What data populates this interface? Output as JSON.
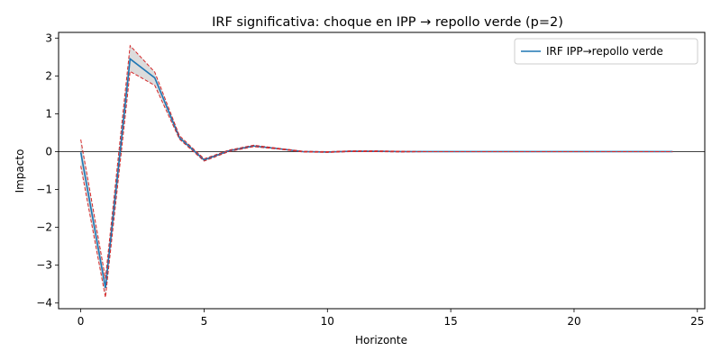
{
  "chart_data": {
    "type": "line",
    "title": "IRF significativa: choque en IPP → repollo verde (p=2)",
    "xlabel": "Horizonte",
    "ylabel": "Impacto",
    "xlim": [
      -0.9,
      25.3
    ],
    "ylim": [
      -4.15,
      3.15
    ],
    "xticks": [
      0,
      5,
      10,
      15,
      20,
      25
    ],
    "yticks": [
      -4,
      -3,
      -2,
      -1,
      0,
      1,
      2,
      3
    ],
    "grid": false,
    "legend_position": "upper-right",
    "zero_line": true,
    "x": [
      0,
      1,
      2,
      3,
      4,
      5,
      6,
      7,
      8,
      9,
      10,
      11,
      12,
      13,
      14,
      15,
      16,
      17,
      18,
      19,
      20,
      21,
      22,
      23,
      24
    ],
    "series": [
      {
        "name": "IRF IPP→repollo verde",
        "color": "#1f77b4",
        "values": [
          -0.02,
          -3.6,
          2.45,
          1.95,
          0.37,
          -0.22,
          0.02,
          0.15,
          0.08,
          0.0,
          -0.01,
          0.01,
          0.01,
          0.0,
          0.0,
          0.0,
          0.0,
          0.0,
          0.0,
          0.0,
          0.0,
          0.0,
          0.0,
          0.0,
          0.0
        ]
      }
    ],
    "band": {
      "color": "#d62728",
      "fill": "#c0c0c0",
      "upper": [
        0.32,
        -3.35,
        2.8,
        2.1,
        0.42,
        -0.19,
        0.04,
        0.17,
        0.09,
        0.01,
        0.0,
        0.02,
        0.02,
        0.01,
        0.0,
        0.0,
        0.0,
        0.0,
        0.0,
        0.0,
        0.0,
        0.0,
        0.0,
        0.0,
        0.0
      ],
      "lower": [
        -0.38,
        -3.85,
        2.12,
        1.75,
        0.33,
        -0.25,
        0.0,
        0.13,
        0.07,
        -0.01,
        -0.02,
        0.0,
        0.0,
        -0.01,
        0.0,
        0.0,
        0.0,
        0.0,
        0.0,
        0.0,
        0.0,
        0.0,
        0.0,
        0.0,
        0.0
      ]
    }
  }
}
